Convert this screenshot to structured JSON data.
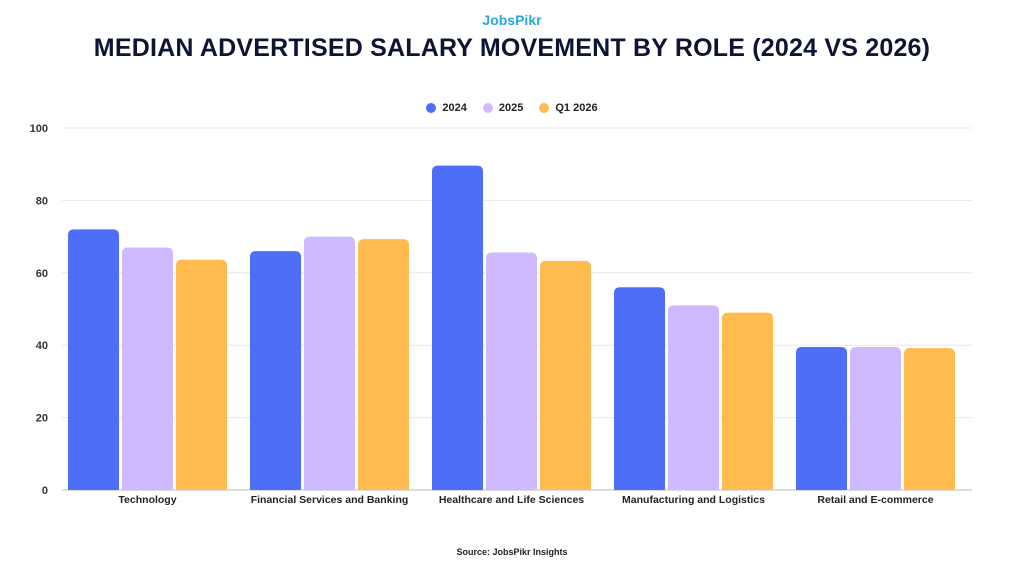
{
  "logo": "JobsPikr",
  "chart_data": {
    "type": "bar",
    "title": "MEDIAN ADVERTISED SALARY MOVEMENT BY ROLE (2024 VS 2026)",
    "categories": [
      "Technology",
      "Financial Services and Banking",
      "Healthcare and Life Sciences",
      "Manufacturing and Logistics",
      "Retail and E-commerce"
    ],
    "series": [
      {
        "name": "2024",
        "color": "#4f6ef7",
        "values": [
          72,
          66,
          89.6,
          56,
          39.5
        ]
      },
      {
        "name": "2025",
        "color": "#cfbaff",
        "values": [
          67,
          70,
          65.6,
          51,
          39.5
        ]
      },
      {
        "name": "Q1 2026",
        "color": "#ffbb4d",
        "values": [
          63.6,
          69.3,
          63.3,
          49,
          39.2
        ]
      }
    ],
    "ylim": [
      0,
      100
    ],
    "yticks": [
      0,
      20,
      40,
      60,
      80,
      100
    ],
    "xlabel": "",
    "ylabel": "",
    "grid": true,
    "legend": "top-center"
  },
  "source": "Source: JobsPikr Insights"
}
